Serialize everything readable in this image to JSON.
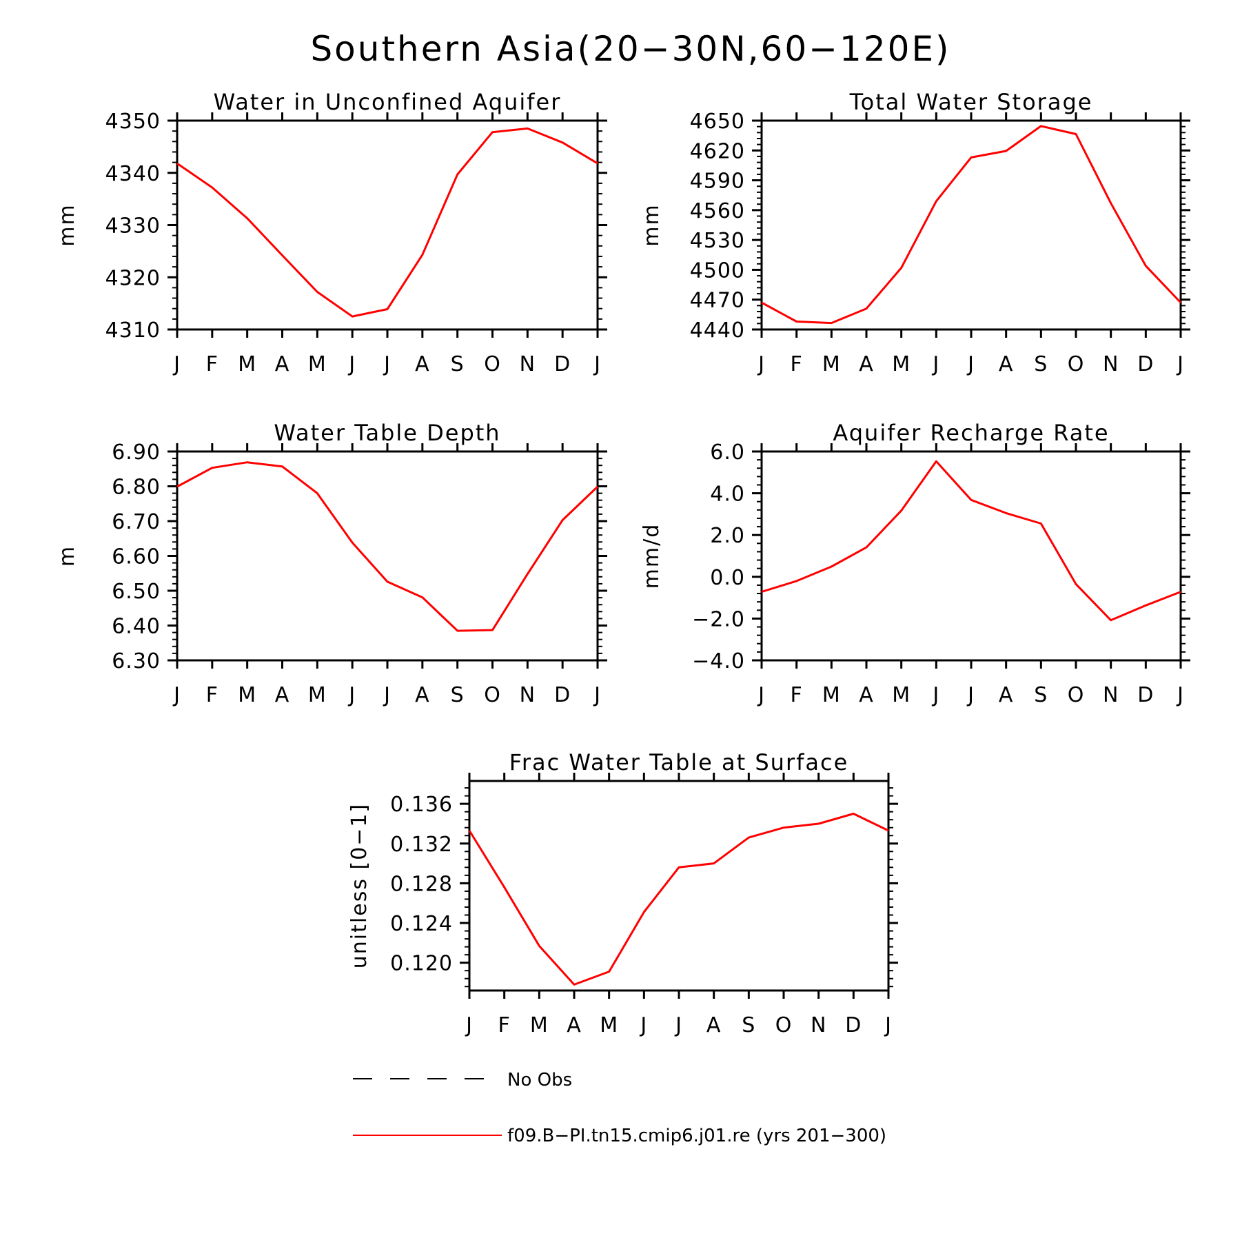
{
  "title": "Southern Asia(20−30N,60−120E)",
  "months": [
    "J",
    "F",
    "M",
    "A",
    "M",
    "J",
    "J",
    "A",
    "S",
    "O",
    "N",
    "D",
    "J"
  ],
  "colors": {
    "model_line": "#ff0000",
    "axes": "#000000"
  },
  "legend": {
    "obs_label": "No Obs",
    "model_label": "f09.B−PI.tn15.cmip6.j01.re (yrs 201−300)"
  },
  "chart_data": [
    {
      "type": "line",
      "title": "Water in Unconfined Aquifer",
      "ylabel": "mm",
      "ylim": [
        4310,
        4350
      ],
      "yticks": [
        "4310",
        "4320",
        "4330",
        "4340",
        "4350"
      ],
      "yminor_step": 2,
      "x": [
        "J",
        "F",
        "M",
        "A",
        "M",
        "J",
        "J",
        "A",
        "S",
        "O",
        "N",
        "D",
        "J"
      ],
      "series": [
        {
          "values": [
            4341.8,
            4337.2,
            4331.3,
            4324.2,
            4317.2,
            4312.5,
            4313.9,
            4324.3,
            4339.7,
            4347.8,
            4348.5,
            4345.8,
            4341.8
          ]
        }
      ]
    },
    {
      "type": "line",
      "title": "Total Water Storage",
      "ylabel": "mm",
      "ylim": [
        4440,
        4650
      ],
      "yticks": [
        "4440",
        "4470",
        "4500",
        "4530",
        "4560",
        "4590",
        "4620",
        "4650"
      ],
      "yminor_step": 6,
      "x": [
        "J",
        "F",
        "M",
        "A",
        "M",
        "J",
        "J",
        "A",
        "S",
        "O",
        "N",
        "D",
        "J"
      ],
      "series": [
        {
          "values": [
            4467,
            4448,
            4446.5,
            4461,
            4502,
            4569,
            4613,
            4619.5,
            4644.5,
            4636.5,
            4567,
            4504,
            4467
          ]
        }
      ]
    },
    {
      "type": "line",
      "title": "Water Table Depth",
      "ylabel": "m",
      "ylim": [
        6.3,
        6.9
      ],
      "yticks": [
        "6.30",
        "6.40",
        "6.50",
        "6.60",
        "6.70",
        "6.80",
        "6.90"
      ],
      "yminor_step": 0.02,
      "x": [
        "J",
        "F",
        "M",
        "A",
        "M",
        "J",
        "J",
        "A",
        "S",
        "O",
        "N",
        "D",
        "J"
      ],
      "series": [
        {
          "values": [
            6.799,
            6.853,
            6.869,
            6.857,
            6.78,
            6.638,
            6.526,
            6.481,
            6.385,
            6.387,
            6.548,
            6.703,
            6.799
          ]
        }
      ]
    },
    {
      "type": "line",
      "title": "Aquifer Recharge Rate",
      "ylabel": "mm/d",
      "ylim": [
        -4.0,
        6.0
      ],
      "yticks": [
        "−4.0",
        "−2.0",
        "0.0",
        "2.0",
        "4.0",
        "6.0"
      ],
      "yminor_step": 0.4,
      "x": [
        "J",
        "F",
        "M",
        "A",
        "M",
        "J",
        "J",
        "A",
        "S",
        "O",
        "N",
        "D",
        "J"
      ],
      "series": [
        {
          "values": [
            -0.72,
            -0.2,
            0.49,
            1.41,
            3.17,
            5.53,
            3.68,
            3.05,
            2.55,
            -0.35,
            -2.08,
            -1.37,
            -0.72
          ]
        }
      ]
    },
    {
      "type": "line",
      "title": "Frac Water Table at Surface",
      "ylabel": "unitless [0−1]",
      "ylim": [
        0.1172,
        0.1383
      ],
      "yticks": [
        "0.120",
        "0.124",
        "0.128",
        "0.132",
        "0.136"
      ],
      "ytick_values": [
        0.12,
        0.124,
        0.128,
        0.132,
        0.136
      ],
      "yminor_step": 0.0008,
      "x": [
        "J",
        "F",
        "M",
        "A",
        "M",
        "J",
        "J",
        "A",
        "S",
        "O",
        "N",
        "D",
        "J"
      ],
      "series": [
        {
          "values": [
            0.1333,
            0.1276,
            0.1217,
            0.1178,
            0.1191,
            0.1251,
            0.1296,
            0.13,
            0.1326,
            0.1336,
            0.134,
            0.135,
            0.1333
          ]
        }
      ]
    }
  ]
}
